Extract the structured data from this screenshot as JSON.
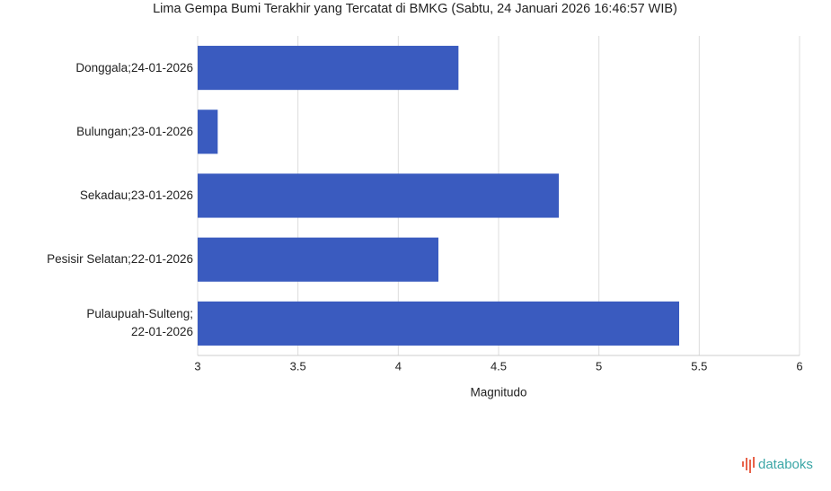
{
  "chart_data": {
    "type": "bar",
    "orientation": "horizontal",
    "title": "Lima Gempa Bumi Terakhir yang Tercatat di BMKG (Sabtu, 24 Januari 2026 16:46:57 WIB)",
    "x_label": "Magnitudo",
    "categories": [
      "Donggala;24-01-2026",
      "Bulungan;23-01-2026",
      "Sekadau;23-01-2026",
      "Pesisir Selatan;22-01-2026",
      "Pulaupuah-Sulteng;\n22-01-2026"
    ],
    "values": [
      4.3,
      3.1,
      4.8,
      4.2,
      5.4
    ],
    "color": "#3a5bbf",
    "xlim": [
      3,
      6
    ],
    "xticks": [
      3,
      3.5,
      4,
      4.5,
      5,
      5.5,
      6
    ],
    "grid": true,
    "source_logo": "databoks"
  }
}
